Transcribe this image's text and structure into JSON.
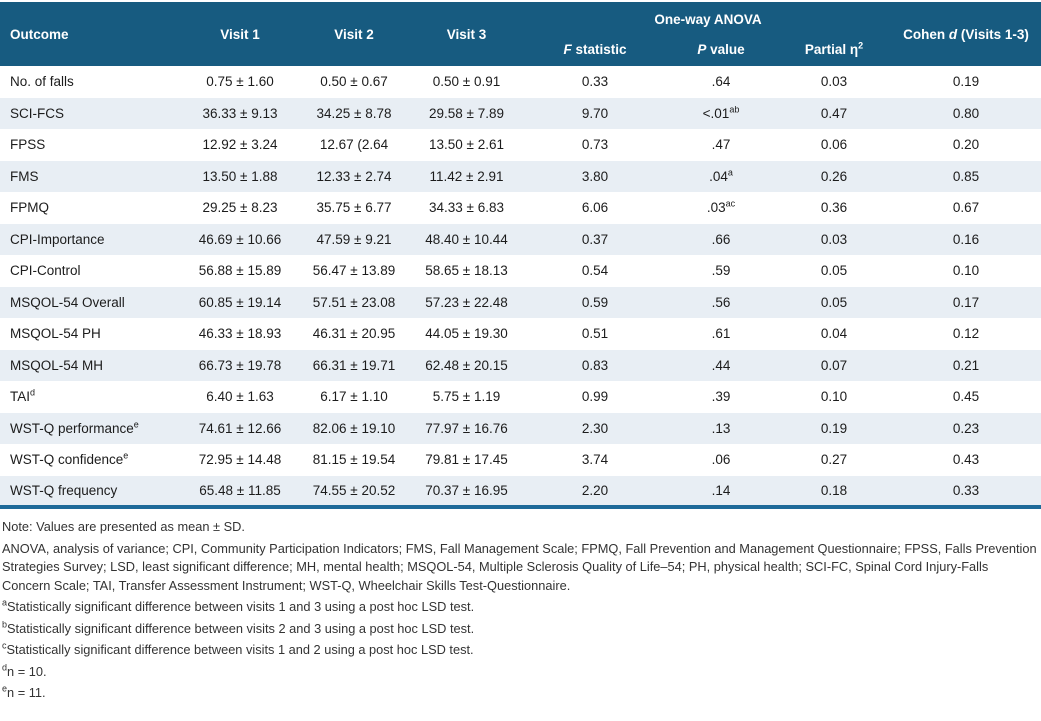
{
  "colors": {
    "header_bg": "#175b80",
    "row_alt_bg": "#e8eef4",
    "bottom_border": "#1e6a99"
  },
  "table": {
    "header": {
      "outcome": "Outcome",
      "visit1": "Visit 1",
      "visit2": "Visit 2",
      "visit3": "Visit 3",
      "anova_group": "One-way ANOVA",
      "f_italic": "F",
      "f_rest": " statistic",
      "p_italic": "P",
      "p_rest": " value",
      "eta_pre": "Partial η",
      "eta_sup": "2",
      "cohen_pre": "Cohen ",
      "cohen_italic": "d",
      "cohen_post": " (Visits 1-3)"
    },
    "rows": [
      {
        "outcome": "No. of falls",
        "v1": "0.75 ± 1.60",
        "v2": "0.50 ± 0.67",
        "v3": "0.50 ± 0.91",
        "f": "0.33",
        "p": ".64",
        "eta": "0.03",
        "cohen": "0.19"
      },
      {
        "outcome": "SCI-FCS",
        "v1": "36.33 ± 9.13",
        "v2": "34.25 ± 8.78",
        "v3": "29.58 ± 7.89",
        "f": "9.70",
        "p": "<.01",
        "p_sup": "ab",
        "eta": "0.47",
        "cohen": "0.80"
      },
      {
        "outcome": "FPSS",
        "v1": "12.92 ± 3.24",
        "v2": "12.67 (2.64",
        "v3": "13.50 ± 2.61",
        "f": "0.73",
        "p": ".47",
        "eta": "0.06",
        "cohen": "0.20"
      },
      {
        "outcome": "FMS",
        "v1": "13.50 ± 1.88",
        "v2": "12.33 ± 2.74",
        "v3": "11.42 ± 2.91",
        "f": "3.80",
        "p": ".04",
        "p_sup": "a",
        "eta": "0.26",
        "cohen": "0.85"
      },
      {
        "outcome": "FPMQ",
        "v1": "29.25 ± 8.23",
        "v2": "35.75 ± 6.77",
        "v3": "34.33 ± 6.83",
        "f": "6.06",
        "p": ".03",
        "p_sup": "ac",
        "eta": "0.36",
        "cohen": "0.67"
      },
      {
        "outcome": "CPI-Importance",
        "v1": "46.69 ± 10.66",
        "v2": "47.59 ± 9.21",
        "v3": "48.40 ± 10.44",
        "f": "0.37",
        "p": ".66",
        "eta": "0.03",
        "cohen": "0.16"
      },
      {
        "outcome": "CPI-Control",
        "v1": "56.88 ± 15.89",
        "v2": "56.47 ± 13.89",
        "v3": "58.65 ± 18.13",
        "f": "0.54",
        "p": ".59",
        "eta": "0.05",
        "cohen": "0.10"
      },
      {
        "outcome": "MSQOL-54 Overall",
        "v1": "60.85 ± 19.14",
        "v2": "57.51 ± 23.08",
        "v3": "57.23 ± 22.48",
        "f": "0.59",
        "p": ".56",
        "eta": "0.05",
        "cohen": "0.17"
      },
      {
        "outcome": "MSQOL-54 PH",
        "v1": "46.33 ± 18.93",
        "v2": "46.31 ± 20.95",
        "v3": "44.05 ± 19.30",
        "f": "0.51",
        "p": ".61",
        "eta": "0.04",
        "cohen": "0.12"
      },
      {
        "outcome": "MSQOL-54 MH",
        "v1": "66.73 ± 19.78",
        "v2": "66.31 ± 19.71",
        "v3": "62.48 ± 20.15",
        "f": "0.83",
        "p": ".44",
        "eta": "0.07",
        "cohen": "0.21"
      },
      {
        "outcome": "TAI",
        "outcome_sup": "d",
        "v1": "6.40 ± 1.63",
        "v2": "6.17 ± 1.10",
        "v3": "5.75 ± 1.19",
        "f": "0.99",
        "p": ".39",
        "eta": "0.10",
        "cohen": "0.45"
      },
      {
        "outcome": "WST-Q performance",
        "outcome_sup": "e",
        "v1": "74.61 ± 12.66",
        "v2": "82.06 ± 19.10",
        "v3": "77.97 ± 16.76",
        "f": "2.30",
        "p": ".13",
        "eta": "0.19",
        "cohen": "0.23"
      },
      {
        "outcome": "WST-Q confidence",
        "outcome_sup": "e",
        "v1": "72.95 ± 14.48",
        "v2": "81.15 ± 19.54",
        "v3": "79.81 ± 17.45",
        "f": "3.74",
        "p": ".06",
        "eta": "0.27",
        "cohen": "0.43"
      },
      {
        "outcome": "WST-Q frequency",
        "v1": "65.48 ± 11.85",
        "v2": "74.55 ± 20.52",
        "v3": "70.37 ± 16.95",
        "f": "2.20",
        "p": ".14",
        "eta": "0.18",
        "cohen": "0.33"
      }
    ]
  },
  "notes": {
    "note_sd": "Note: Values are presented as mean ± SD.",
    "abbreviations": "ANOVA, analysis of variance; CPI, Community Participation Indicators; FMS, Fall Management Scale; FPMQ, Fall Prevention and Management Questionnaire; FPSS, Falls Prevention Strategies Survey; LSD, least significant difference; MH, mental health; MSQOL-54, Multiple Sclerosis Quality of Life–54; PH, physical health; SCI-FC, Spinal Cord Injury-Falls Concern Scale; TAI, Transfer Assessment Instrument; WST-Q, Wheelchair Skills Test-Questionnaire.",
    "footnotes": [
      {
        "sup": "a",
        "text": "Statistically significant difference between visits 1 and 3 using a post hoc LSD test."
      },
      {
        "sup": "b",
        "text": "Statistically significant difference between visits 2 and 3 using a post hoc LSD test."
      },
      {
        "sup": "c",
        "text": "Statistically significant difference between visits 1 and 2 using a post hoc LSD test."
      },
      {
        "sup": "d",
        "text": "n = 10."
      },
      {
        "sup": "e",
        "text": "n = 11."
      }
    ]
  }
}
